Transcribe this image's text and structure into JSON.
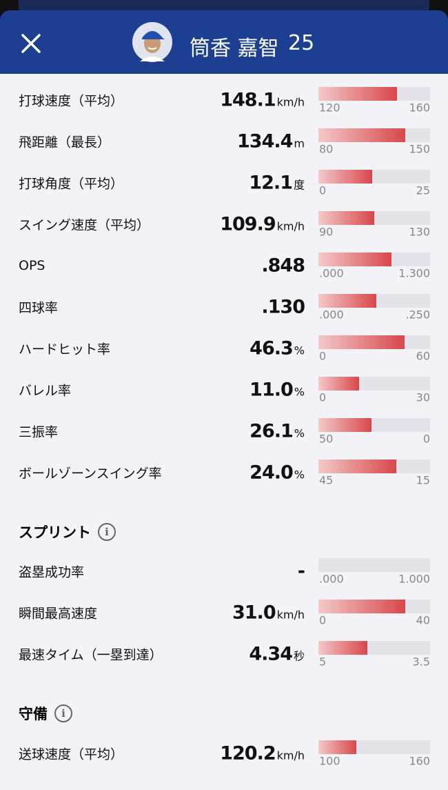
{
  "header": {
    "name": "筒香 嘉智",
    "number": "25"
  },
  "batting": {
    "rows": [
      {
        "label": "打球速度（平均）",
        "value": "148.1",
        "unit": "km/h",
        "min": "120",
        "max": "160"
      },
      {
        "label": "飛距離（最長）",
        "value": "134.4",
        "unit": "m",
        "min": "80",
        "max": "150"
      },
      {
        "label": "打球角度（平均）",
        "value": "12.1",
        "unit": "度",
        "min": "0",
        "max": "25"
      },
      {
        "label": "スイング速度（平均）",
        "value": "109.9",
        "unit": "km/h",
        "min": "90",
        "max": "130"
      },
      {
        "label": "OPS",
        "value": ".848",
        "min": ".000",
        "max": "1.300"
      },
      {
        "label": "四球率",
        "value": ".130",
        "min": ".000",
        "max": ".250"
      },
      {
        "label": "ハードヒット率",
        "value": "46.3",
        "unit": "%",
        "min": "0",
        "max": "60"
      },
      {
        "label": "バレル率",
        "value": "11.0",
        "unit": "%",
        "min": "0",
        "max": "30"
      },
      {
        "label": "三振率",
        "value": "26.1",
        "unit": "%",
        "min": "50",
        "max": "0"
      },
      {
        "label": "ボールゾーンスイング率",
        "value": "24.0",
        "unit": "%",
        "min": "45",
        "max": "15"
      }
    ]
  },
  "sprint": {
    "title": "スプリント",
    "rows": [
      {
        "label": "盗塁成功率",
        "value": "-",
        "min": ".000",
        "max": "1.000"
      },
      {
        "label": "瞬間最高速度",
        "value": "31.0",
        "unit": "km/h",
        "min": "0",
        "max": "40"
      },
      {
        "label": "最速タイム（一塁到達）",
        "value": "4.34",
        "unit": "秒",
        "min": "5",
        "max": "3.5"
      }
    ]
  },
  "defense": {
    "title": "守備",
    "rows": [
      {
        "label": "送球速度（平均）",
        "value": "120.2",
        "unit": "km/h",
        "min": "100",
        "max": "160"
      }
    ]
  }
}
